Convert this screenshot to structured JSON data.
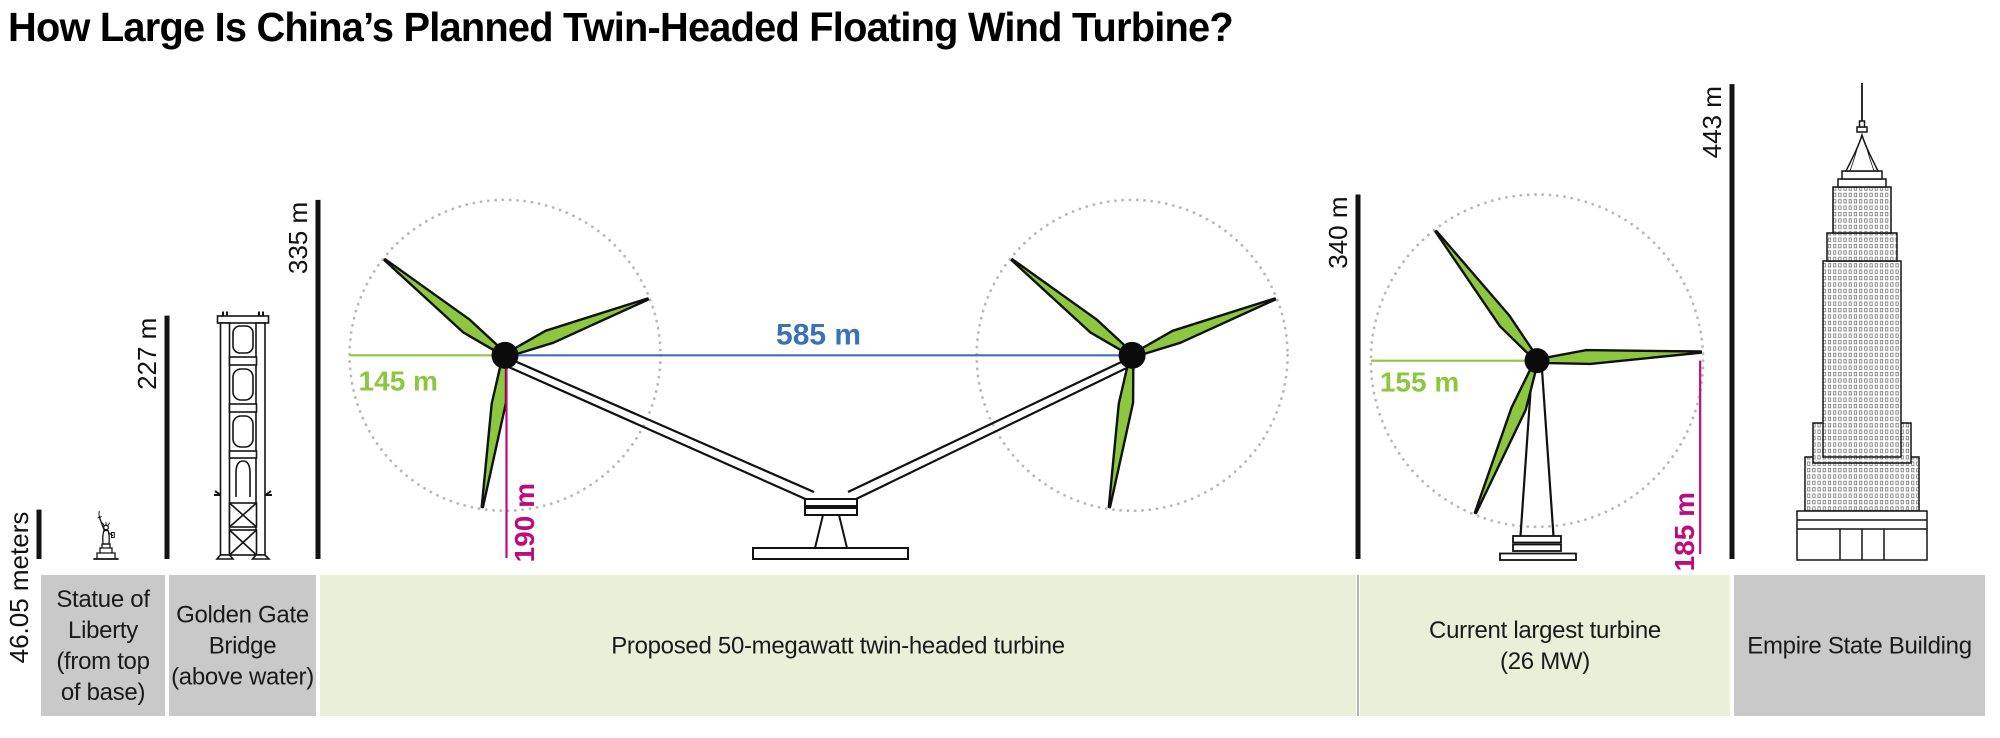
{
  "title": "How Large Is China’s Planned Twin-Headed Floating Wind Turbine?",
  "colors": {
    "green": "#8dc63f",
    "blue": "#3a72ba",
    "magenta": "#be0c7e",
    "band_green": "#e9efd8",
    "band_gray": "#c9c9c9",
    "line_black": "#131313",
    "dot_gray": "#b9b9b9",
    "band_text": "#1a1a1a"
  },
  "chart_data": {
    "type": "diagram",
    "subtype": "size-comparison",
    "unit": "meters",
    "items": [
      {
        "id": "statue-of-liberty",
        "band_label_lines": [
          "Statue of",
          "Liberty",
          "(from top",
          "of base)"
        ],
        "band_color": "gray",
        "height_m": 46.05,
        "height_label": "46.05 meters"
      },
      {
        "id": "golden-gate-bridge",
        "band_label_lines": [
          "Golden Gate",
          "Bridge",
          "(above water)"
        ],
        "band_color": "gray",
        "height_m": 227,
        "height_label": "227 m"
      },
      {
        "id": "twin-turbine",
        "band_label_lines": [
          "Proposed 50-megawatt twin-headed turbine"
        ],
        "band_color": "green",
        "height_m": 335,
        "height_label": "335 m",
        "rotors": 2,
        "rotor_radius_m": 145,
        "rotor_radius_label": "145 m",
        "hub_height_m": 190,
        "hub_height_label": "190 m",
        "span_m": 585,
        "span_label": "585 m"
      },
      {
        "id": "current-largest-turbine",
        "band_label_lines": [
          "Current largest turbine",
          "(26 MW)"
        ],
        "band_color": "green",
        "height_m": 340,
        "height_label": "340 m",
        "rotors": 1,
        "rotor_radius_m": 155,
        "rotor_radius_label": "155 m",
        "hub_height_m": 185,
        "hub_height_label": "185 m"
      },
      {
        "id": "empire-state-building",
        "band_label_lines": [
          "Empire State Building"
        ],
        "band_color": "gray",
        "height_m": 443,
        "height_label": "443 m"
      }
    ]
  }
}
